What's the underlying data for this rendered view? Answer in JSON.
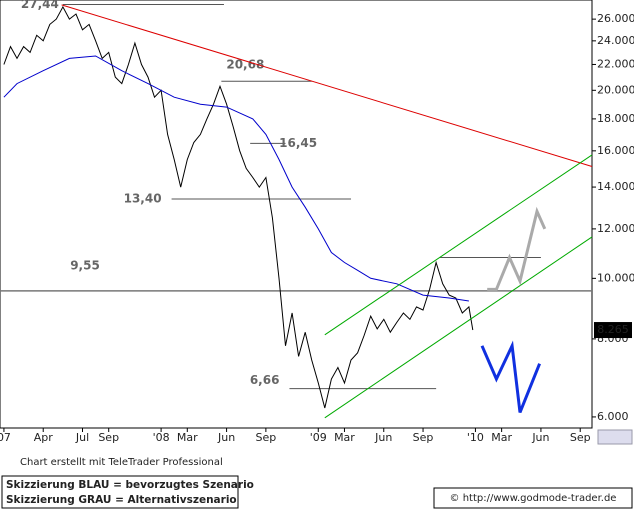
{
  "chart_data": {
    "type": "line",
    "yscale": "log",
    "xlim": [
      -0.3,
      44.9
    ],
    "ylim": [
      5.76,
      27.9
    ],
    "xticks": [
      {
        "value": 0,
        "label": "07"
      },
      {
        "value": 3,
        "label": "Apr"
      },
      {
        "value": 6,
        "label": "Jul"
      },
      {
        "value": 8,
        "label": "Sep"
      },
      {
        "value": 12,
        "label": "'08"
      },
      {
        "value": 14,
        "label": "Mar"
      },
      {
        "value": 17,
        "label": "Jun"
      },
      {
        "value": 20,
        "label": "Sep"
      },
      {
        "value": 24,
        "label": "'09"
      },
      {
        "value": 26,
        "label": "Mar"
      },
      {
        "value": 29,
        "label": "Jun"
      },
      {
        "value": 32,
        "label": "Sep"
      },
      {
        "value": 36,
        "label": "'10"
      },
      {
        "value": 38,
        "label": "Mar"
      },
      {
        "value": 41,
        "label": "Jun"
      },
      {
        "value": 44,
        "label": "Sep"
      }
    ],
    "yticks": [
      {
        "value": 6,
        "label": "6.000"
      },
      {
        "value": 8,
        "label": "8.000"
      },
      {
        "value": 10,
        "label": "10.000"
      },
      {
        "value": 12,
        "label": "12.000"
      },
      {
        "value": 14,
        "label": "14.000"
      },
      {
        "value": 16,
        "label": "16.000"
      },
      {
        "value": 18,
        "label": "18.000"
      },
      {
        "value": 20,
        "label": "20.000"
      },
      {
        "value": 22,
        "label": "22.000"
      },
      {
        "value": 24,
        "label": "24.000"
      },
      {
        "value": 26,
        "label": "26.000"
      }
    ],
    "series": [
      {
        "color": "#000000",
        "x": [
          0,
          0.5,
          1,
          1.5,
          2,
          2.5,
          3,
          3.5,
          4,
          4.5,
          5,
          5.5,
          6,
          6.5,
          7,
          7.5,
          8,
          8.5,
          9,
          9.5,
          10,
          10.5,
          11,
          11.5,
          12,
          12.5,
          13,
          13.5,
          14,
          14.5,
          15,
          15.5,
          16,
          16.5,
          17,
          17.5,
          18,
          18.5,
          19,
          19.5,
          20,
          20.5,
          21,
          21.5,
          22,
          22.5,
          23,
          23.5,
          24,
          24.5,
          25,
          25.5,
          26,
          26.5,
          27,
          27.5,
          28,
          28.5,
          29,
          29.5,
          30,
          30.5,
          31,
          31.5,
          32,
          32.5,
          33,
          33.5,
          34,
          34.5,
          35,
          35.5,
          35.8
        ],
        "values": [
          22,
          23.5,
          22.5,
          23.5,
          23,
          24.5,
          24,
          25.5,
          26,
          27.2,
          26,
          26.5,
          25,
          25.5,
          24,
          22.5,
          23,
          21,
          20.5,
          22,
          23.8,
          22,
          21,
          19.5,
          20,
          17,
          15.5,
          14,
          15.5,
          16.5,
          17,
          18,
          19,
          20.3,
          19,
          17.5,
          16,
          15,
          14.5,
          14,
          14.5,
          12.5,
          10,
          7.8,
          8.8,
          7.5,
          8.2,
          7.4,
          6.8,
          6.2,
          6.9,
          7.2,
          6.8,
          7.4,
          7.6,
          8.1,
          8.7,
          8.3,
          8.6,
          8.2,
          8.5,
          8.8,
          8.6,
          9.0,
          8.9,
          9.6,
          10.6,
          9.8,
          9.4,
          9.3,
          8.8,
          9.0,
          8.265
        ]
      },
      {
        "color": "#0000cc",
        "x": [
          0,
          1,
          3,
          5,
          7,
          9,
          11,
          13,
          15,
          17,
          19,
          20,
          21,
          22,
          23,
          24,
          25,
          26,
          27,
          28,
          30,
          32,
          34,
          35.5
        ],
        "values": [
          19.5,
          20.5,
          21.5,
          22.5,
          22.7,
          21.5,
          20.5,
          19.5,
          19,
          18.8,
          18,
          17,
          15.5,
          14,
          13,
          12,
          11,
          10.6,
          10.3,
          10,
          9.8,
          9.4,
          9.3,
          9.2
        ]
      }
    ],
    "last_value": 8.265,
    "levels": [
      {
        "value": 27.44,
        "label": "27,44",
        "x0": 4.5,
        "x1": 16.8
      },
      {
        "value": 20.68,
        "label": "20,68",
        "x0": 16.6,
        "x1": 23.5
      },
      {
        "value": 16.45,
        "label": "16,45",
        "x0": 18.8,
        "x1": 21.5
      },
      {
        "value": 13.4,
        "label": "13,40",
        "x0": 12.8,
        "x1": 26.5
      },
      {
        "value": 9.55,
        "label": "9,55"
      },
      {
        "value": 6.66,
        "label": "6,66",
        "x0": 21.8,
        "x1": 33
      },
      {
        "value": 10.8,
        "x0": 33.3,
        "x1": 41
      }
    ],
    "trendlines": [
      {
        "color": "#dd0000",
        "x": [
          4.4,
          44.9
        ],
        "values": [
          27.4,
          15.1
        ]
      },
      {
        "color": "#00aa00",
        "x": [
          24.5,
          44.9
        ],
        "values": [
          8.12,
          15.76
        ]
      },
      {
        "color": "#00aa00",
        "x": [
          24.5,
          44.9
        ],
        "values": [
          5.98,
          11.65
        ]
      }
    ],
    "scenarios": [
      {
        "color": "#1030e0",
        "x": [
          36.5,
          37.6,
          38.8,
          39.4,
          40.9
        ],
        "values": [
          7.8,
          6.9,
          7.8,
          6.1,
          7.3
        ]
      },
      {
        "color": "#aaaaaa",
        "x": [
          36.9,
          37.6,
          38.6,
          39.4,
          40.7,
          41.3
        ],
        "values": [
          9.6,
          9.6,
          10.8,
          9.9,
          12.8,
          12
        ]
      }
    ]
  },
  "footer": {
    "credit": "Chart erstellt mit TeleTrader Professional",
    "legend_lines": [
      "Skizzierung BLAU = bevorzugtes Szenario",
      "Skizzierung GRAU = Alternativszenario"
    ],
    "source": "© http://www.godmode-trader.de"
  }
}
